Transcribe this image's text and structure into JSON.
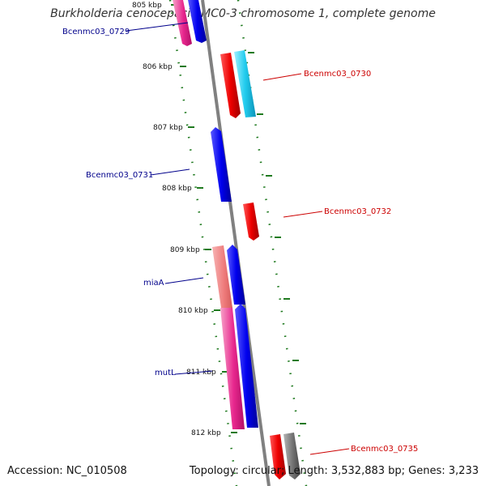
{
  "title": "Burkholderia cenocepacia MC0-3 chromosome 1, complete genome",
  "accession": "Accession: NC_010508",
  "topology": "Topology: circular; Length: 3,532,883 bp; Genes: 3,233",
  "colors": {
    "backbone": "#808080",
    "tick": "#1f7a1f",
    "label_blue": "#00008b",
    "label_red": "#cc0000"
  },
  "ticks": [
    "805 kbp",
    "806 kbp",
    "807 kbp",
    "808 kbp",
    "809 kbp",
    "810 kbp",
    "811 kbp",
    "812 kbp"
  ],
  "gene_labels": [
    {
      "text": "Bcenmc03_0729",
      "color": "blue"
    },
    {
      "text": "Bcenmc03_0730",
      "color": "red"
    },
    {
      "text": "Bcenmc03_0731",
      "color": "blue"
    },
    {
      "text": "Bcenmc03_0732",
      "color": "red"
    },
    {
      "text": "miaA",
      "color": "blue"
    },
    {
      "text": "mutL",
      "color": "blue"
    },
    {
      "text": "Bcenmc03_0735",
      "color": "red"
    }
  ],
  "genes": [
    {
      "id": "Bcenmc03_0729",
      "strand": "forward",
      "color": "#e8278e"
    },
    {
      "id": "Bcenmc03_0729b",
      "strand": "forward",
      "color": "#0000ee"
    },
    {
      "id": "Bcenmc03_0730",
      "strand": "reverse",
      "color": "#ee0000"
    },
    {
      "id": "Bcenmc03_0730b",
      "strand": "reverse",
      "color": "#22ccee"
    },
    {
      "id": "Bcenmc03_0731",
      "strand": "forward",
      "color": "#0000ee"
    },
    {
      "id": "Bcenmc03_0732",
      "strand": "reverse",
      "color": "#ee0000"
    },
    {
      "id": "miaA",
      "strand": "forward",
      "color": "#0000ee"
    },
    {
      "id": "mutL",
      "strand": "forward",
      "color": "#0000ee"
    },
    {
      "id": "mutL_region",
      "strand": "forward",
      "color": "#e8278e"
    },
    {
      "id": "Bcenmc03_0735",
      "strand": "reverse",
      "color": "#ee0000"
    },
    {
      "id": "Bcenmc03_0735b",
      "strand": "reverse",
      "color": "#666666"
    }
  ]
}
